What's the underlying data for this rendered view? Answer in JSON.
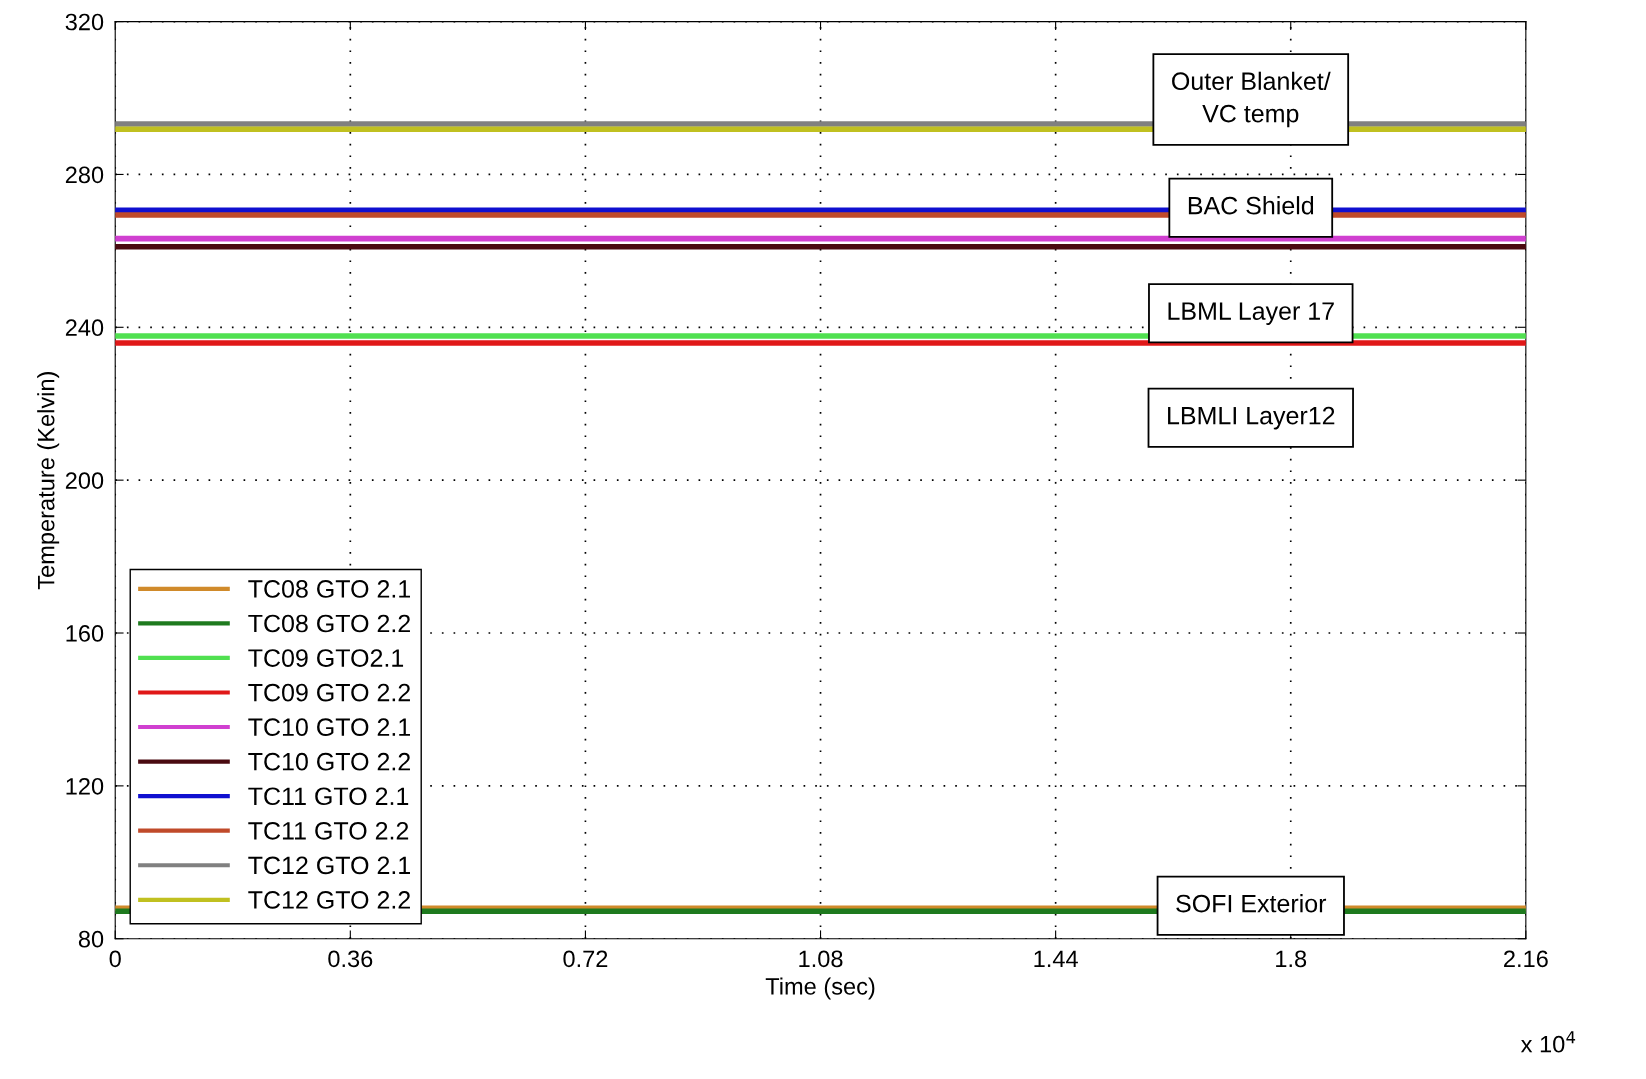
{
  "chart_data": {
    "type": "line",
    "xlabel": "Time (sec)",
    "ylabel": "Temperature (Kelvin)",
    "x": [
      0,
      2.16
    ],
    "xlim": [
      0,
      2.16
    ],
    "xticks": [
      0,
      0.36,
      0.72,
      1.08,
      1.44,
      1.8,
      2.16
    ],
    "ylim": [
      80,
      320
    ],
    "yticks": [
      80,
      120,
      160,
      200,
      240,
      280,
      320
    ],
    "grid": true,
    "legend": "bottom left",
    "line_style": "solid",
    "series": [
      {
        "name": "TC08 GTO 2.1",
        "color": "#d08a2a",
        "values": [
          88.0,
          88.0
        ]
      },
      {
        "name": "TC08 GTO 2.2",
        "color": "#1e7a1e",
        "values": [
          87.2,
          87.2
        ]
      },
      {
        "name": "TC09 GTO2.1",
        "color": "#50e050",
        "values": [
          237.7,
          237.7
        ]
      },
      {
        "name": "TC09 GTO 2.2",
        "color": "#e01818",
        "values": [
          235.9,
          235.9
        ]
      },
      {
        "name": "TC10 GTO 2.1",
        "color": "#d040d0",
        "values": [
          263.2,
          263.2
        ]
      },
      {
        "name": "TC10 GTO 2.2",
        "color": "#4a0a10",
        "values": [
          261.1,
          261.1
        ]
      },
      {
        "name": "TC11 GTO 2.1",
        "color": "#1010d0",
        "values": [
          270.6,
          270.6
        ]
      },
      {
        "name": "TC11 GTO 2.2",
        "color": "#c04a2a",
        "values": [
          269.4,
          269.4
        ]
      },
      {
        "name": "TC12 GTO 2.1",
        "color": "#808080",
        "values": [
          293.2,
          293.2
        ]
      },
      {
        "name": "TC12 GTO 2.2",
        "color": "#c0c020",
        "values": [
          291.8,
          291.8
        ]
      }
    ],
    "annotations": [
      "Outer Blanket/\nVC temp",
      "BAC Shield",
      "LBML Layer 17",
      "LBMLI Layer12",
      "SOFI Exterior",
      "x 10$^{4}$"
    ]
  }
}
